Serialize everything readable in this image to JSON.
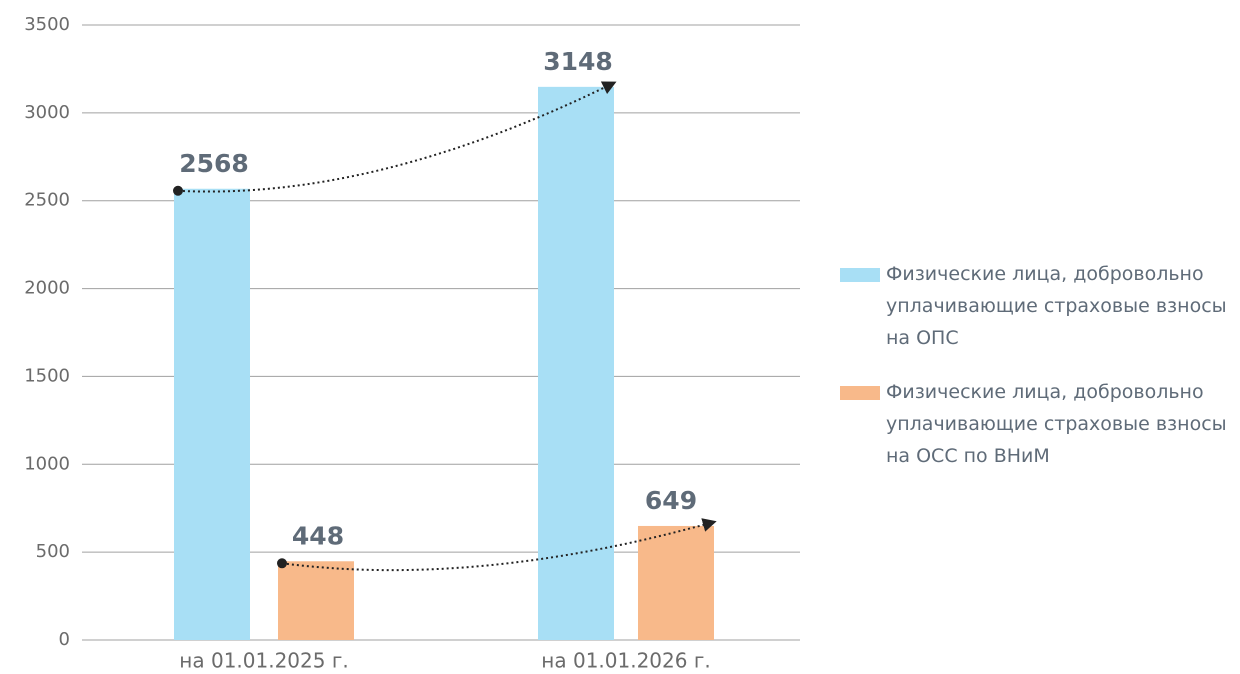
{
  "chart_data": {
    "type": "bar",
    "categories": [
      "на 01.01.2025 г.",
      "на 01.01.2026 г."
    ],
    "series": [
      {
        "name": "Физические лица, добровольно уплачивающие страховые взносы на ОПС",
        "color": "#a8dff5",
        "values": [
          2568,
          3148
        ]
      },
      {
        "name": "Физические лица, добровольно уплачивающие страховые взносы на ОСС по ВНиМ",
        "color": "#f8b98a",
        "values": [
          448,
          649
        ]
      }
    ],
    "ylim": [
      0,
      3500
    ],
    "yticks": [
      0,
      500,
      1000,
      1500,
      2000,
      2500,
      3000,
      3500
    ],
    "grid": true,
    "legend": "right"
  }
}
